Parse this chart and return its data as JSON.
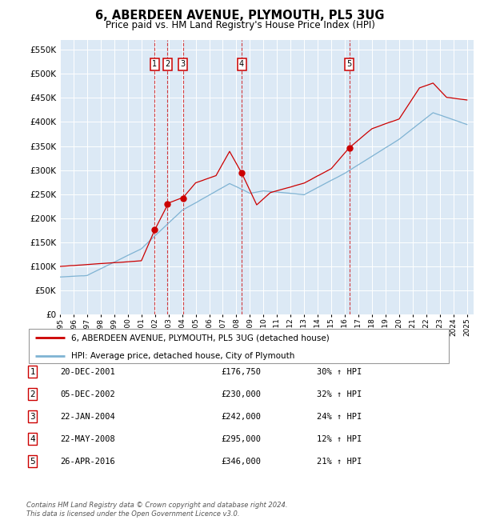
{
  "title": "6, ABERDEEN AVENUE, PLYMOUTH, PL5 3UG",
  "subtitle": "Price paid vs. HM Land Registry's House Price Index (HPI)",
  "ylim": [
    0,
    570000
  ],
  "yticks": [
    0,
    50000,
    100000,
    150000,
    200000,
    250000,
    300000,
    350000,
    400000,
    450000,
    500000,
    550000
  ],
  "xlim_start": 1995.0,
  "xlim_end": 2025.5,
  "plot_bg_color": "#dce9f5",
  "grid_color": "#ffffff",
  "sale_line_color": "#cc0000",
  "hpi_line_color": "#7fb3d3",
  "transactions": [
    {
      "label": "1",
      "year_float": 2001.96,
      "price": 176750
    },
    {
      "label": "2",
      "year_float": 2002.92,
      "price": 230000
    },
    {
      "label": "3",
      "year_float": 2004.06,
      "price": 242000
    },
    {
      "label": "4",
      "year_float": 2008.39,
      "price": 295000
    },
    {
      "label": "5",
      "year_float": 2016.32,
      "price": 346000
    }
  ],
  "footer": "Contains HM Land Registry data © Crown copyright and database right 2024.\nThis data is licensed under the Open Government Licence v3.0.",
  "legend_sale_label": "6, ABERDEEN AVENUE, PLYMOUTH, PL5 3UG (detached house)",
  "legend_hpi_label": "HPI: Average price, detached house, City of Plymouth",
  "table_rows": [
    {
      "num": "1",
      "date": "20-DEC-2001",
      "price": "£176,750",
      "pct": "30% ↑ HPI"
    },
    {
      "num": "2",
      "date": "05-DEC-2002",
      "price": "£230,000",
      "pct": "32% ↑ HPI"
    },
    {
      "num": "3",
      "date": "22-JAN-2004",
      "price": "£242,000",
      "pct": "24% ↑ HPI"
    },
    {
      "num": "4",
      "date": "22-MAY-2008",
      "price": "£295,000",
      "pct": "12% ↑ HPI"
    },
    {
      "num": "5",
      "date": "26-APR-2016",
      "price": "£346,000",
      "pct": "21% ↑ HPI"
    }
  ]
}
